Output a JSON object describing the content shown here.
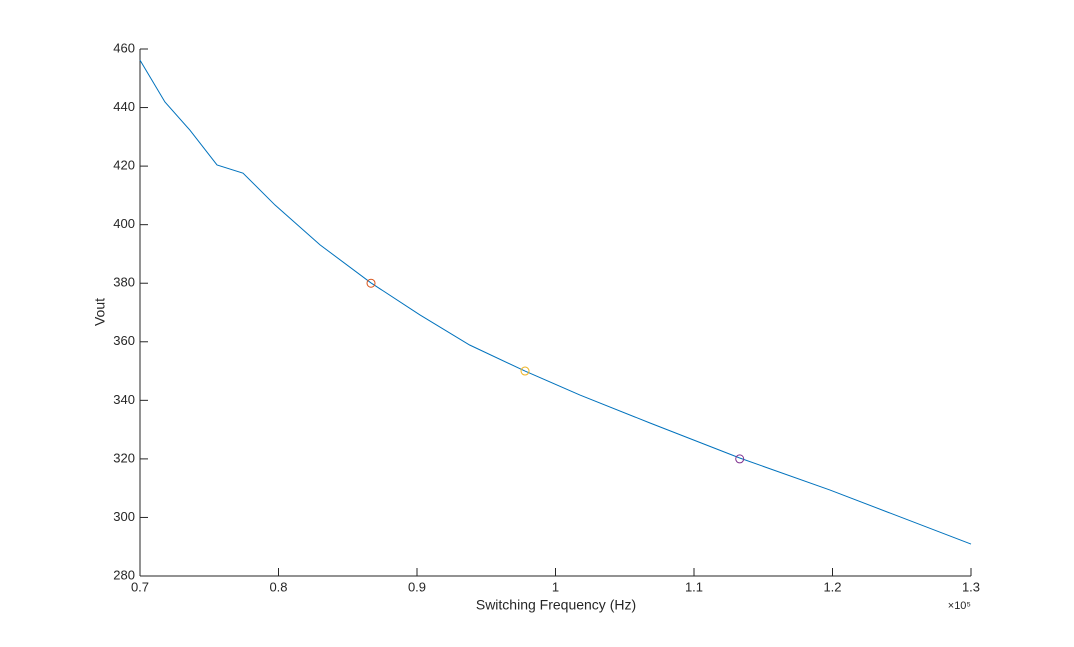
{
  "chart_data": {
    "type": "line",
    "xlabel": "Switching Frequency (Hz)",
    "ylabel": "Vout",
    "x_exponent_label": "×10⁵",
    "x": [
      0.7,
      0.718,
      0.736,
      0.7556,
      0.7744,
      0.7975,
      0.83,
      0.8668,
      0.902,
      0.938,
      0.978,
      1.0177,
      1.068,
      1.133,
      1.198,
      1.3
    ],
    "series": [
      {
        "color": "#0072bd",
        "values": [
          456.2,
          441.9,
          432.3,
          420.4,
          417.6,
          406.7,
          393.1,
          380.1,
          369.2,
          358.9,
          350,
          341.8,
          332.3,
          320.3,
          309.4,
          290.9
        ]
      }
    ],
    "markers": [
      {
        "x": 0.8668,
        "y": 380,
        "color": "#d95319"
      },
      {
        "x": 0.978,
        "y": 350,
        "color": "#edb120"
      },
      {
        "x": 1.133,
        "y": 320,
        "color": "#7e2f8e"
      }
    ],
    "xlim": [
      0.7,
      1.3
    ],
    "ylim": [
      280,
      460
    ],
    "xticks": [
      0.7,
      0.8,
      0.9,
      1,
      1.1,
      1.2,
      1.3
    ],
    "yticks": [
      280,
      300,
      320,
      340,
      360,
      380,
      400,
      420,
      440,
      460
    ],
    "grid": false
  }
}
